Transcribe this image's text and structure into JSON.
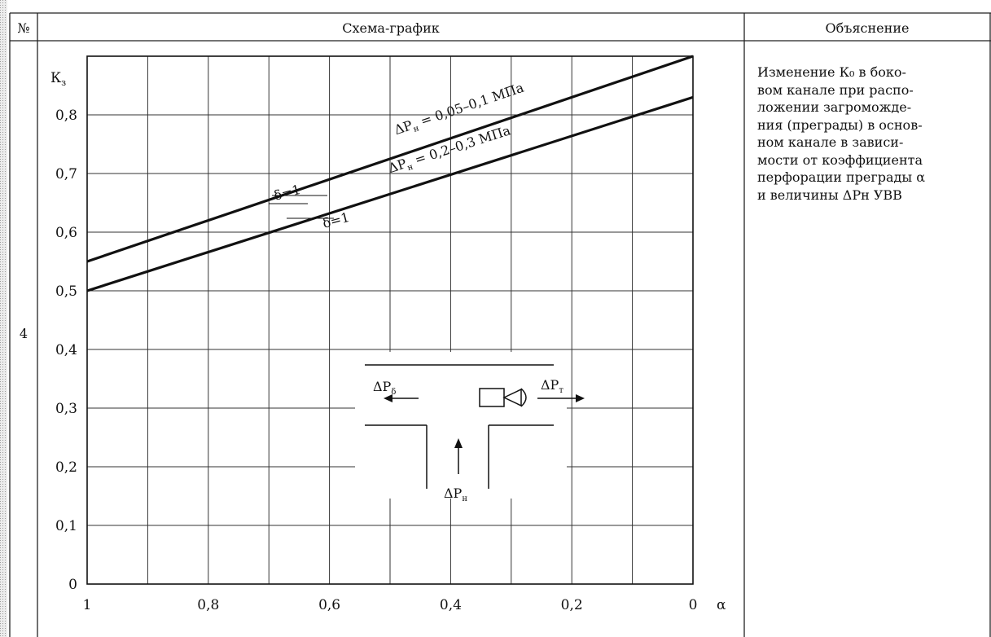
{
  "table": {
    "header_no": "№",
    "header_chart": "Схема-график",
    "header_explanation": "Объяснение",
    "row_no": "4",
    "explanation_lines": [
      "Изменение К₀ в боко-",
      "вом канале при распо-",
      "ложении загроможде-",
      "ния (преграды) в основ-",
      "ном канале в зависи-",
      "мости от коэффициента",
      "перфорации преграды α",
      "и величины ΔРн УВВ"
    ]
  },
  "chart_data": {
    "type": "line",
    "ylabel": "К",
    "ylabel_sub": "з",
    "xlabel": "α",
    "xlim": [
      1,
      0
    ],
    "ylim": [
      0,
      0.9
    ],
    "x_tick_labels": [
      {
        "value": 1,
        "label": "1"
      },
      {
        "value": 0.8,
        "label": "0,8"
      },
      {
        "value": 0.6,
        "label": "0,6"
      },
      {
        "value": 0.4,
        "label": "0,4"
      },
      {
        "value": 0.2,
        "label": "0,2"
      },
      {
        "value": 0,
        "label": "0"
      }
    ],
    "y_tick_labels": [
      {
        "value": 0,
        "label": "0"
      },
      {
        "value": 0.1,
        "label": "0,1"
      },
      {
        "value": 0.2,
        "label": "0,2"
      },
      {
        "value": 0.3,
        "label": "0,3"
      },
      {
        "value": 0.4,
        "label": "0,4"
      },
      {
        "value": 0.5,
        "label": "0,5"
      },
      {
        "value": 0.6,
        "label": "0,6"
      },
      {
        "value": 0.7,
        "label": "0,7"
      },
      {
        "value": 0.8,
        "label": "0,8"
      }
    ],
    "grid": true,
    "series": [
      {
        "name": "ΔРн = 0,05–0,1 МПа",
        "x": [
          1,
          0
        ],
        "y": [
          0.55,
          0.9
        ]
      },
      {
        "name": "ΔРн = 0,2–0,3 МПа",
        "x": [
          1,
          0
        ],
        "y": [
          0.5,
          0.83
        ]
      }
    ],
    "annotations": [
      "δ=1",
      "δ=1"
    ],
    "inset_labels": {
      "left": "ΔР",
      "left_sub": "δ",
      "right": "ΔР",
      "right_sub": "т",
      "bottom": "ΔР",
      "bottom_sub": "н"
    }
  }
}
